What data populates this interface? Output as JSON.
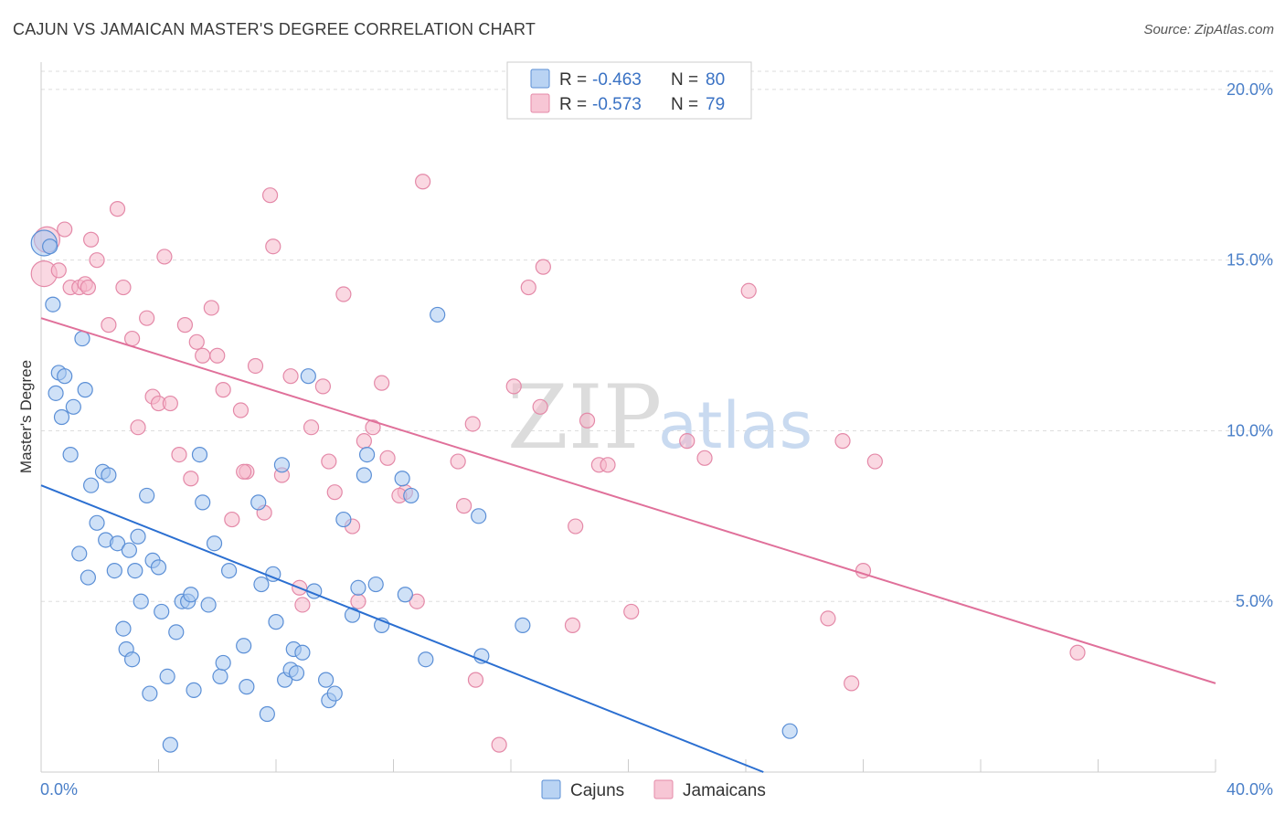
{
  "header": {
    "title": "CAJUN VS JAMAICAN MASTER'S DEGREE CORRELATION CHART",
    "source": "Source: ZipAtlas.com"
  },
  "watermark": {
    "zip": "ZIP",
    "atlas": "atlas"
  },
  "colors": {
    "cajun_fill": "#a8c8f0",
    "cajun_stroke": "#5b8fd6",
    "cajun_line": "#2b6fd1",
    "jamaican_fill": "#f5b8ca",
    "jamaican_stroke": "#e489a8",
    "jamaican_line": "#e0709a",
    "grid": "#dddddd",
    "tick_label": "#4a7fc8"
  },
  "legend_top": {
    "rows": [
      {
        "r_label": "R =",
        "r_value": "-0.463",
        "n_label": "N =",
        "n_value": "80"
      },
      {
        "r_label": "R =",
        "r_value": "-0.573",
        "n_label": "N =",
        "n_value": "79"
      }
    ]
  },
  "legend_bottom": {
    "items": [
      "Cajuns",
      "Jamaicans"
    ]
  },
  "chart_data": {
    "type": "scatter",
    "title": "CAJUN VS JAMAICAN MASTER'S DEGREE CORRELATION CHART",
    "xlabel": "",
    "ylabel": "Master's Degree",
    "xlim": [
      0,
      40
    ],
    "ylim": [
      0,
      20.8
    ],
    "x_tick_labels": [
      "0.0%",
      "40.0%"
    ],
    "y_ticks": [
      5,
      10,
      15,
      20
    ],
    "y_tick_labels": [
      "5.0%",
      "10.0%",
      "15.0%",
      "20.0%"
    ],
    "grid": true,
    "legend_position": "top-center",
    "series": [
      {
        "name": "Cajuns",
        "R": -0.463,
        "N": 80,
        "trend": {
          "x": [
            0,
            24.6
          ],
          "y": [
            8.4,
            0
          ]
        },
        "points": [
          [
            0.1,
            15.5
          ],
          [
            0.3,
            15.4
          ],
          [
            0.4,
            13.7
          ],
          [
            0.5,
            11.1
          ],
          [
            0.6,
            11.7
          ],
          [
            0.7,
            10.4
          ],
          [
            0.8,
            11.6
          ],
          [
            1.0,
            9.3
          ],
          [
            1.1,
            10.7
          ],
          [
            1.3,
            6.4
          ],
          [
            1.4,
            12.7
          ],
          [
            1.5,
            11.2
          ],
          [
            1.6,
            5.7
          ],
          [
            1.7,
            8.4
          ],
          [
            1.9,
            7.3
          ],
          [
            2.1,
            8.8
          ],
          [
            2.2,
            6.8
          ],
          [
            2.3,
            8.7
          ],
          [
            2.5,
            5.9
          ],
          [
            2.6,
            6.7
          ],
          [
            2.8,
            4.2
          ],
          [
            2.9,
            3.6
          ],
          [
            3.0,
            6.5
          ],
          [
            3.1,
            3.3
          ],
          [
            3.2,
            5.9
          ],
          [
            3.3,
            6.9
          ],
          [
            3.4,
            5.0
          ],
          [
            3.6,
            8.1
          ],
          [
            3.7,
            2.3
          ],
          [
            3.8,
            6.2
          ],
          [
            4.0,
            6.0
          ],
          [
            4.1,
            4.7
          ],
          [
            4.3,
            2.8
          ],
          [
            4.4,
            0.8
          ],
          [
            4.6,
            4.1
          ],
          [
            4.8,
            5.0
          ],
          [
            5.0,
            5.0
          ],
          [
            5.1,
            5.2
          ],
          [
            5.2,
            2.4
          ],
          [
            5.4,
            9.3
          ],
          [
            5.5,
            7.9
          ],
          [
            5.7,
            4.9
          ],
          [
            5.9,
            6.7
          ],
          [
            6.1,
            2.8
          ],
          [
            6.2,
            3.2
          ],
          [
            6.4,
            5.9
          ],
          [
            6.9,
            3.7
          ],
          [
            7.0,
            2.5
          ],
          [
            7.4,
            7.9
          ],
          [
            7.5,
            5.5
          ],
          [
            7.7,
            1.7
          ],
          [
            7.9,
            5.8
          ],
          [
            8.0,
            4.4
          ],
          [
            8.2,
            9.0
          ],
          [
            8.3,
            2.7
          ],
          [
            8.5,
            3.0
          ],
          [
            8.6,
            3.6
          ],
          [
            8.7,
            2.9
          ],
          [
            8.9,
            3.5
          ],
          [
            9.1,
            11.6
          ],
          [
            9.3,
            5.3
          ],
          [
            9.7,
            2.7
          ],
          [
            9.8,
            2.1
          ],
          [
            10.0,
            2.3
          ],
          [
            10.3,
            7.4
          ],
          [
            10.6,
            4.6
          ],
          [
            10.8,
            5.4
          ],
          [
            11.0,
            8.7
          ],
          [
            11.1,
            9.3
          ],
          [
            11.4,
            5.5
          ],
          [
            11.6,
            4.3
          ],
          [
            12.3,
            8.6
          ],
          [
            12.4,
            5.2
          ],
          [
            12.6,
            8.1
          ],
          [
            13.1,
            3.3
          ],
          [
            14.9,
            7.5
          ],
          [
            15.0,
            3.4
          ],
          [
            16.4,
            4.3
          ],
          [
            25.5,
            1.2
          ],
          [
            13.5,
            13.4
          ]
        ]
      },
      {
        "name": "Jamaicans",
        "R": -0.573,
        "N": 79,
        "trend": {
          "x": [
            0,
            40
          ],
          "y": [
            13.3,
            2.6
          ]
        },
        "points": [
          [
            0.1,
            14.6
          ],
          [
            0.2,
            15.6
          ],
          [
            0.6,
            14.7
          ],
          [
            0.8,
            15.9
          ],
          [
            1.0,
            14.2
          ],
          [
            1.3,
            14.2
          ],
          [
            1.5,
            14.3
          ],
          [
            1.7,
            15.6
          ],
          [
            1.9,
            15.0
          ],
          [
            2.3,
            13.1
          ],
          [
            2.6,
            16.5
          ],
          [
            2.8,
            14.2
          ],
          [
            3.1,
            12.7
          ],
          [
            3.3,
            10.1
          ],
          [
            3.6,
            13.3
          ],
          [
            3.8,
            11.0
          ],
          [
            4.0,
            10.8
          ],
          [
            4.2,
            15.1
          ],
          [
            4.4,
            10.8
          ],
          [
            4.7,
            9.3
          ],
          [
            4.9,
            13.1
          ],
          [
            5.1,
            8.6
          ],
          [
            5.3,
            12.6
          ],
          [
            5.5,
            12.2
          ],
          [
            5.8,
            13.6
          ],
          [
            6.0,
            12.2
          ],
          [
            6.2,
            11.2
          ],
          [
            6.5,
            7.4
          ],
          [
            6.8,
            10.6
          ],
          [
            7.0,
            8.8
          ],
          [
            7.3,
            11.9
          ],
          [
            7.6,
            7.6
          ],
          [
            7.8,
            16.9
          ],
          [
            7.9,
            15.4
          ],
          [
            8.2,
            8.7
          ],
          [
            8.5,
            11.6
          ],
          [
            8.8,
            5.4
          ],
          [
            8.9,
            4.9
          ],
          [
            9.2,
            10.1
          ],
          [
            9.6,
            11.3
          ],
          [
            9.8,
            9.1
          ],
          [
            10.0,
            8.2
          ],
          [
            10.3,
            14.0
          ],
          [
            10.6,
            7.2
          ],
          [
            10.8,
            5.0
          ],
          [
            11.0,
            9.7
          ],
          [
            11.3,
            10.1
          ],
          [
            11.6,
            11.4
          ],
          [
            11.8,
            9.2
          ],
          [
            12.4,
            8.2
          ],
          [
            12.8,
            5.0
          ],
          [
            13.0,
            17.3
          ],
          [
            14.2,
            9.1
          ],
          [
            14.4,
            7.8
          ],
          [
            14.7,
            10.2
          ],
          [
            14.8,
            2.7
          ],
          [
            15.6,
            0.8
          ],
          [
            16.1,
            11.3
          ],
          [
            16.6,
            14.2
          ],
          [
            17.0,
            10.7
          ],
          [
            17.1,
            14.8
          ],
          [
            18.1,
            4.3
          ],
          [
            18.2,
            7.2
          ],
          [
            18.6,
            10.3
          ],
          [
            19.0,
            9.0
          ],
          [
            19.3,
            9.0
          ],
          [
            20.1,
            4.7
          ],
          [
            22.0,
            9.7
          ],
          [
            22.6,
            9.2
          ],
          [
            24.1,
            14.1
          ],
          [
            26.8,
            4.5
          ],
          [
            27.3,
            9.7
          ],
          [
            27.6,
            2.6
          ],
          [
            28.0,
            5.9
          ],
          [
            28.4,
            9.1
          ],
          [
            35.3,
            3.5
          ],
          [
            12.2,
            8.1
          ],
          [
            6.9,
            8.8
          ],
          [
            1.6,
            14.2
          ]
        ]
      }
    ]
  }
}
